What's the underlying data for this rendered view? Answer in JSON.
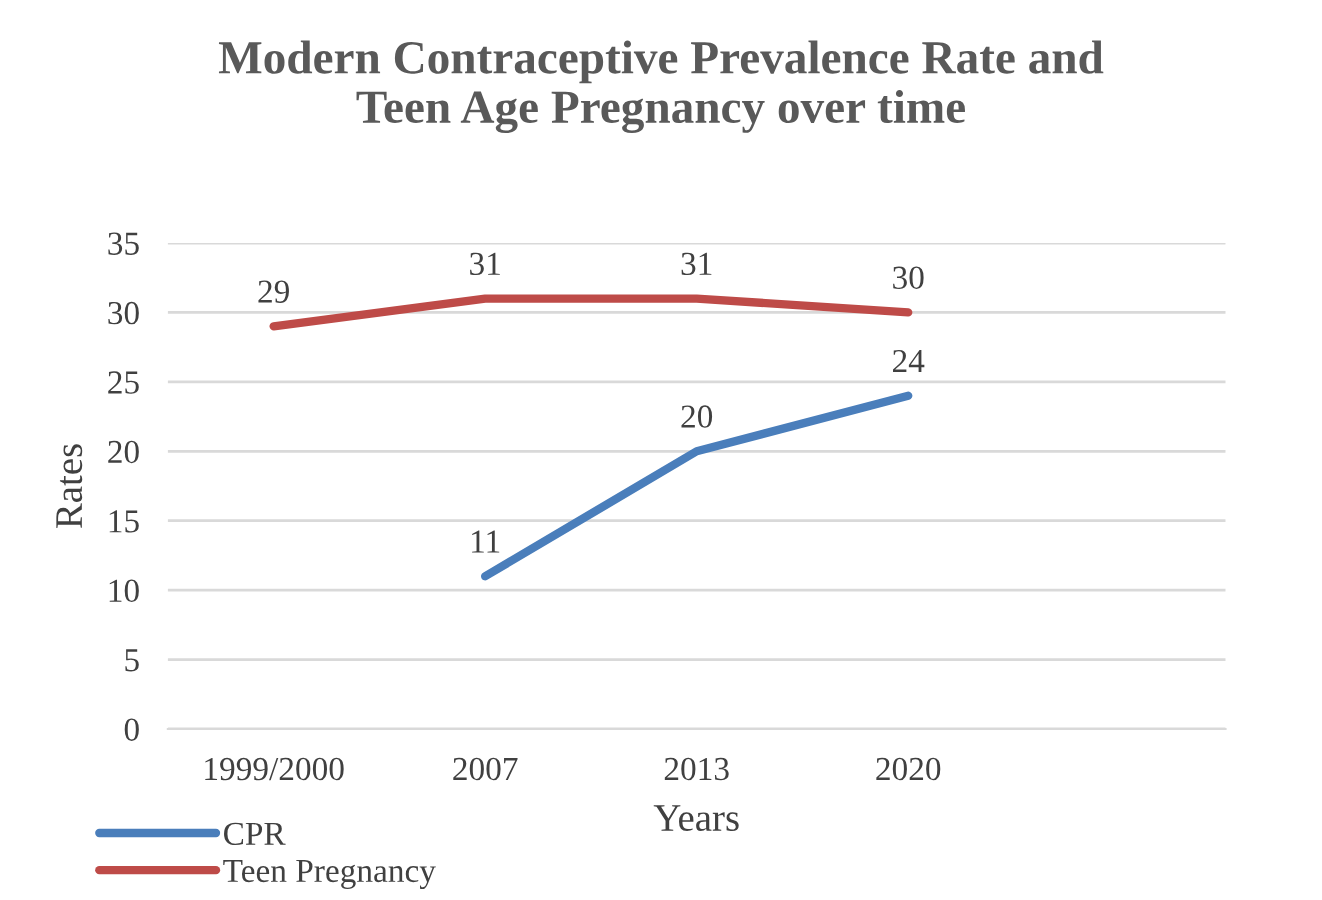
{
  "chart_data": {
    "type": "line",
    "title": "Modern Contraceptive Prevalence Rate and\nTeen Age Pregnancy over time",
    "xlabel": "Years",
    "ylabel": "Rates",
    "categories": [
      "1999/2000",
      "2007",
      "2013",
      "2020",
      null
    ],
    "series": [
      {
        "name": "CPR",
        "color": "#4a7ebb",
        "values": [
          null,
          11,
          20,
          24,
          null
        ]
      },
      {
        "name": "Teen Pregnancy",
        "color": "#be4b48",
        "values": [
          29,
          31,
          31,
          30,
          null
        ]
      }
    ],
    "ylim": [
      0,
      35
    ],
    "yticks": [
      0,
      5,
      10,
      15,
      20,
      25,
      30,
      35
    ],
    "grid": "y",
    "legend": "bottom left",
    "data_labels": true,
    "marker": "none",
    "line_style": "solid"
  }
}
